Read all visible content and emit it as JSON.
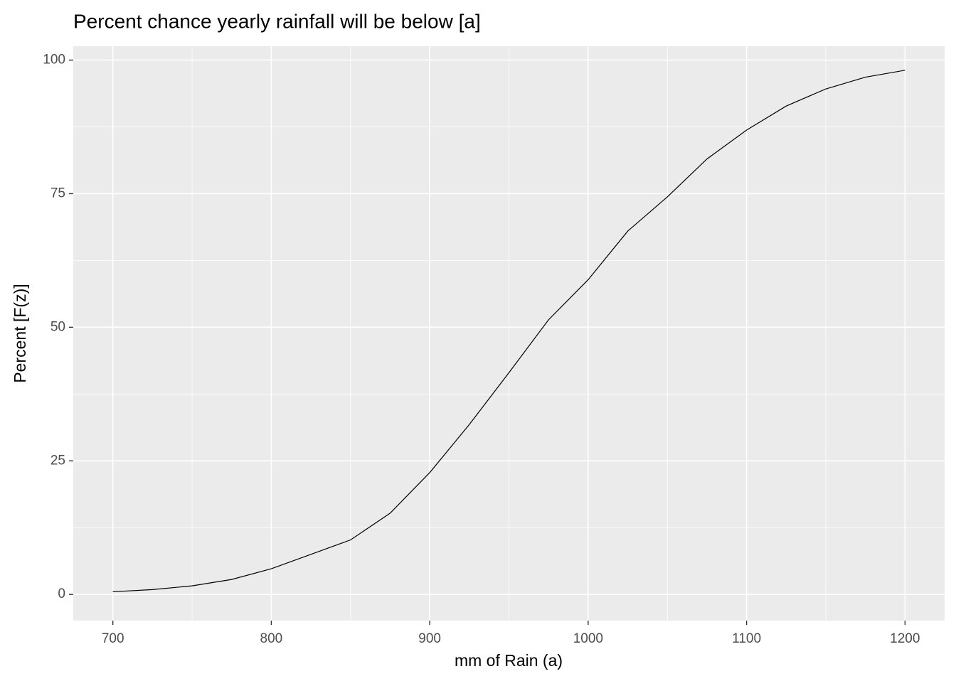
{
  "chart_data": {
    "type": "line",
    "title": "Percent chance yearly rainfall will be below [a]",
    "x_label": "mm of Rain (a)",
    "y_label": "Percent  [F(z)]",
    "x": [
      700,
      725,
      750,
      775,
      800,
      825,
      850,
      875,
      900,
      925,
      950,
      975,
      1000,
      1025,
      1050,
      1075,
      1100,
      1125,
      1150,
      1175,
      1200
    ],
    "series": [
      {
        "color": "#000000",
        "values": [
          0.5,
          0.9,
          1.6,
          2.8,
          4.8,
          7.5,
          10.2,
          15.2,
          22.8,
          31.8,
          41.5,
          51.4,
          58.9,
          68,
          74.4,
          81.5,
          86.9,
          91.4,
          94.6,
          96.8,
          98.1
        ]
      }
    ],
    "xlim": [
      675,
      1225
    ],
    "ylim": [
      -4.9,
      102.6
    ],
    "xticks": [
      700,
      800,
      900,
      1000,
      1100,
      1200
    ],
    "yticks": [
      0,
      25,
      50,
      75,
      100
    ],
    "grid": true
  }
}
